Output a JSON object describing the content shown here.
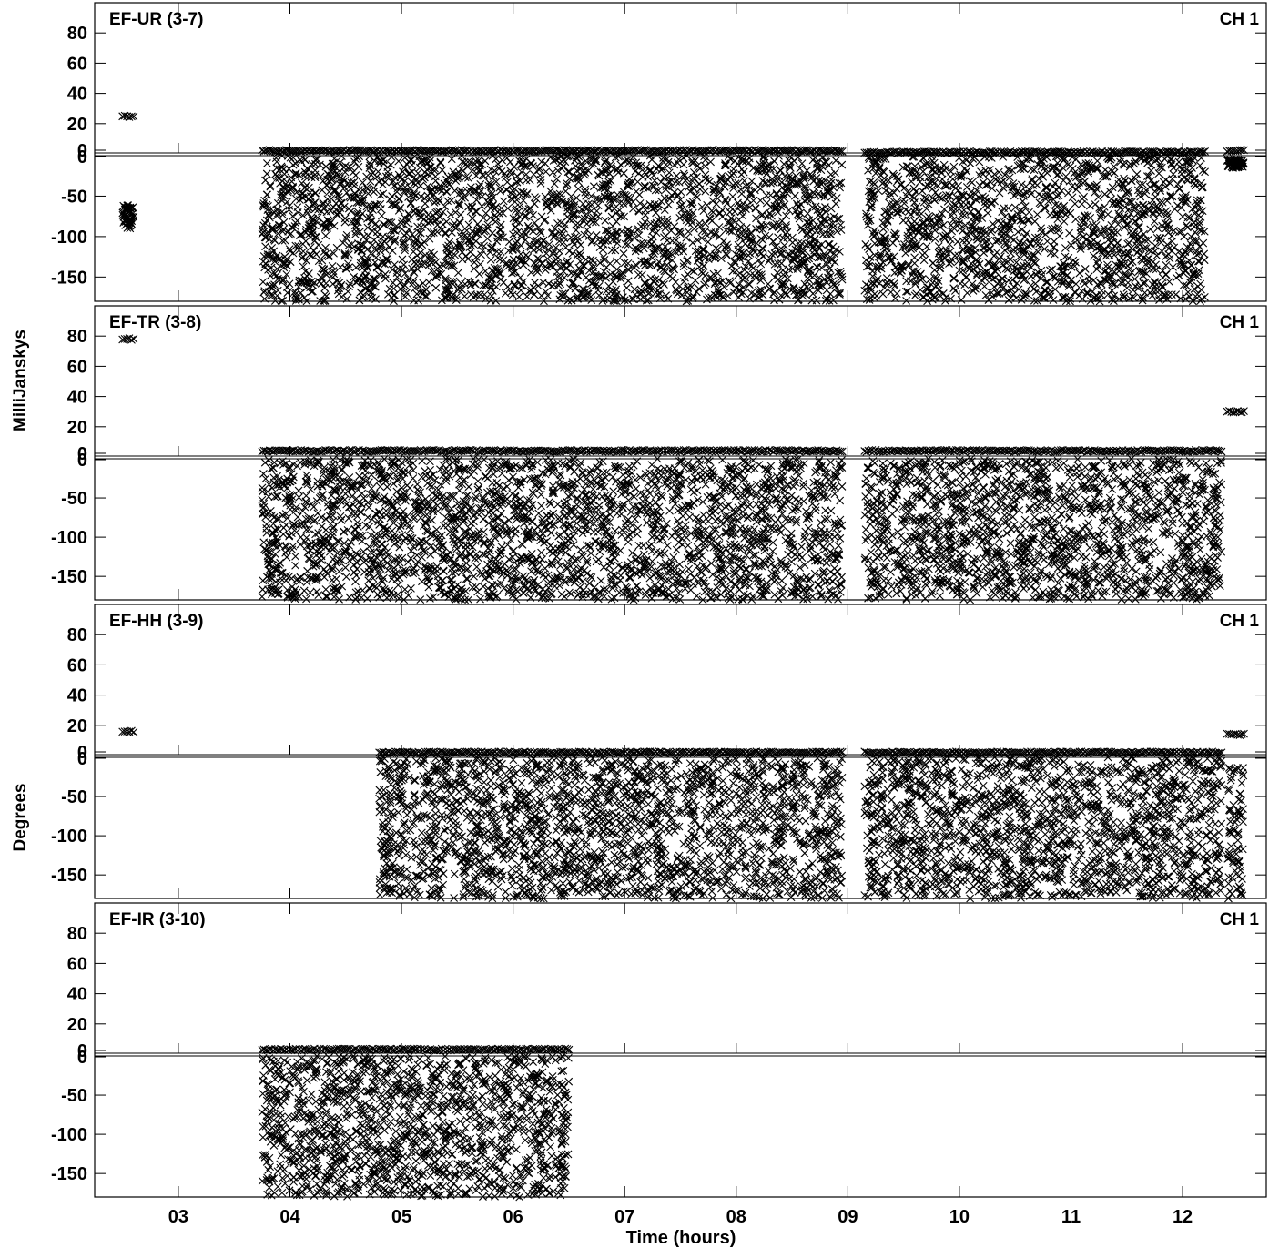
{
  "chart_data": {
    "type": "scatter",
    "xlabel": "Time (hours)",
    "ylabel_top": "MilliJanskys",
    "ylabel_bottom": "Degrees",
    "x_ticks": [
      "03",
      "04",
      "05",
      "06",
      "07",
      "08",
      "09",
      "10",
      "11",
      "12"
    ],
    "x_tick_values": [
      3,
      4,
      5,
      6,
      7,
      8,
      9,
      10,
      11,
      12
    ],
    "xlim": [
      2.25,
      12.75
    ],
    "amp_ticks": [
      "80",
      "60",
      "40",
      "20",
      "0"
    ],
    "amp_tick_values": [
      80,
      60,
      40,
      20,
      0
    ],
    "amp_ylim": [
      0,
      100
    ],
    "phase_ticks": [
      "0",
      "-50",
      "-100",
      "-150"
    ],
    "phase_tick_values": [
      0,
      -50,
      -100,
      -150
    ],
    "phase_ylim": [
      -180,
      0
    ],
    "marker": "x",
    "color": "#000000",
    "panels": [
      {
        "baseline": "EF-UR (3-7)",
        "channel": "CH 1",
        "segments": [
          {
            "t": [
              2.5,
              2.6
            ],
            "amp": 25,
            "phase_range": [
              -90,
              -60
            ]
          },
          {
            "t": [
              3.75,
              8.95
            ],
            "amp": 2,
            "phase_range": [
              -180,
              0
            ]
          },
          {
            "t": [
              9.15,
              12.2
            ],
            "amp": 1,
            "phase_range": [
              -180,
              0
            ]
          },
          {
            "t": [
              12.4,
              12.55
            ],
            "amp": 2,
            "phase_range": [
              -15,
              -5
            ]
          }
        ]
      },
      {
        "baseline": "EF-TR (3-8)",
        "channel": "CH 1",
        "segments": [
          {
            "t": [
              2.5,
              2.6
            ],
            "amp": 78,
            "phase_range": null
          },
          {
            "t": [
              3.75,
              8.95
            ],
            "amp": 4,
            "phase_range": [
              -180,
              0
            ]
          },
          {
            "t": [
              9.15,
              12.35
            ],
            "amp": 4,
            "phase_range": [
              -180,
              0
            ]
          },
          {
            "t": [
              12.4,
              12.55
            ],
            "amp": 30,
            "phase_range": null
          }
        ]
      },
      {
        "baseline": "EF-HH (3-9)",
        "channel": "CH 1",
        "segments": [
          {
            "t": [
              2.5,
              2.6
            ],
            "amp": 16,
            "phase_range": null
          },
          {
            "t": [
              4.8,
              8.95
            ],
            "amp": 2,
            "phase_range": [
              -180,
              0
            ]
          },
          {
            "t": [
              9.15,
              12.35
            ],
            "amp": 2,
            "phase_range": [
              -180,
              0
            ]
          },
          {
            "t": [
              12.4,
              12.55
            ],
            "amp": 14,
            "phase_range": [
              -180,
              -10
            ]
          }
        ]
      },
      {
        "baseline": "EF-IR (3-10)",
        "channel": "CH 1",
        "segments": [
          {
            "t": [
              3.75,
              6.5
            ],
            "amp": 3,
            "phase_range": [
              -180,
              0
            ]
          }
        ]
      }
    ]
  }
}
